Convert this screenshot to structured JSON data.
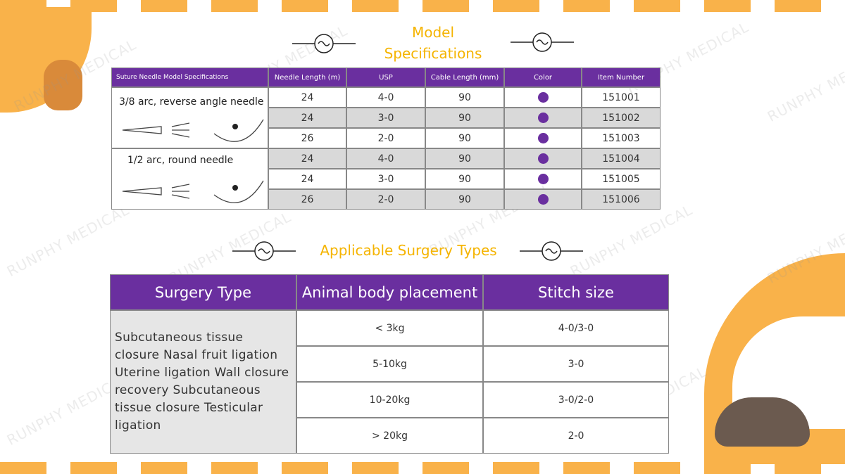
{
  "header": {
    "title": "Model Specifications",
    "section_title": "Applicable Surgery Types",
    "watermark": "RUNPHY MEDICAL"
  },
  "spec_table": {
    "columns": [
      "Suture Needle Model Specifications",
      "Needle Length (m)",
      "USP",
      "Cable Length (mm)",
      "Color",
      "Item Number"
    ],
    "groups": [
      "3/8 arc, reverse angle needle",
      "1/2 arc, round needle"
    ],
    "rows": [
      [
        24,
        "4-0",
        90,
        151001
      ],
      [
        24,
        "3-0",
        90,
        151002
      ],
      [
        26,
        "2-0",
        90,
        151003
      ],
      [
        24,
        "4-0",
        90,
        151004
      ],
      [
        24,
        "3-0",
        90,
        151005
      ],
      [
        26,
        "2-0",
        90,
        151006
      ]
    ]
  },
  "surgery_table": {
    "columns": [
      "Surgery Type",
      "Animal body placement",
      "Stitch size"
    ],
    "surgery_type": "Subcutaneous tissue closure Nasal fruit ligation Uterine ligation Wall closure recovery Subcutaneous tissue closure Testicular ligation",
    "rows": [
      [
        "< 3kg",
        "4-0/3-0"
      ],
      [
        "5-10kg",
        "3-0"
      ],
      [
        "10-20kg",
        "3-0/2-0"
      ],
      [
        "> 20kg",
        "2-0"
      ]
    ]
  }
}
